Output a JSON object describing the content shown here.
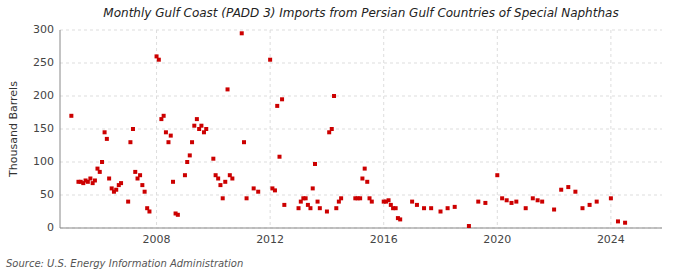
{
  "chart_data": {
    "type": "scatter",
    "title": "Monthly Gulf Coast (PADD 3) Imports from Persian Gulf Countries of Special Naphthas",
    "y_label": "Thousand Barrels",
    "annotations": [
      "Source: U.S. Energy Information Administration"
    ],
    "color": "#cc0000",
    "marker": "square",
    "grid": true,
    "xlim": [
      2004.6,
      2025.8
    ],
    "xticks": [
      2008,
      2012,
      2016,
      2020,
      2024
    ],
    "ylim": [
      0,
      300
    ],
    "yticks": [
      0,
      50,
      100,
      150,
      200,
      250,
      300
    ],
    "x": [
      2005.0,
      2005.25,
      2005.33,
      2005.42,
      2005.5,
      2005.58,
      2005.67,
      2005.75,
      2005.83,
      2005.92,
      2006.0,
      2006.08,
      2006.17,
      2006.25,
      2006.33,
      2006.42,
      2006.5,
      2006.58,
      2006.67,
      2006.75,
      2007.0,
      2007.08,
      2007.17,
      2007.25,
      2007.33,
      2007.42,
      2007.5,
      2007.58,
      2007.67,
      2007.75,
      2008.0,
      2008.08,
      2008.17,
      2008.25,
      2008.33,
      2008.42,
      2008.5,
      2008.58,
      2008.67,
      2008.75,
      2009.0,
      2009.08,
      2009.17,
      2009.25,
      2009.33,
      2009.42,
      2009.5,
      2009.58,
      2009.67,
      2009.75,
      2010.0,
      2010.08,
      2010.17,
      2010.25,
      2010.33,
      2010.42,
      2010.5,
      2010.58,
      2010.67,
      2011.0,
      2011.08,
      2011.17,
      2011.42,
      2011.58,
      2012.0,
      2012.08,
      2012.17,
      2012.25,
      2012.33,
      2012.42,
      2012.5,
      2013.0,
      2013.08,
      2013.17,
      2013.25,
      2013.33,
      2013.42,
      2013.5,
      2013.58,
      2013.67,
      2013.75,
      2014.0,
      2014.08,
      2014.17,
      2014.25,
      2014.33,
      2014.42,
      2014.5,
      2015.0,
      2015.08,
      2015.17,
      2015.25,
      2015.33,
      2015.42,
      2015.5,
      2015.58,
      2016.0,
      2016.08,
      2016.17,
      2016.25,
      2016.33,
      2016.42,
      2016.5,
      2016.58,
      2017.0,
      2017.17,
      2017.42,
      2017.67,
      2018.0,
      2018.25,
      2018.5,
      2019.0,
      2019.33,
      2019.58,
      2020.0,
      2020.17,
      2020.33,
      2020.5,
      2020.67,
      2021.0,
      2021.25,
      2021.42,
      2021.58,
      2022.0,
      2022.25,
      2022.5,
      2022.75,
      2023.0,
      2023.25,
      2023.5,
      2024.0,
      2024.25,
      2024.5
    ],
    "values": [
      170,
      70,
      70,
      68,
      72,
      70,
      75,
      68,
      72,
      90,
      85,
      100,
      145,
      135,
      75,
      60,
      55,
      58,
      65,
      68,
      40,
      130,
      150,
      85,
      75,
      80,
      65,
      55,
      30,
      25,
      260,
      255,
      165,
      170,
      145,
      130,
      140,
      70,
      22,
      20,
      80,
      100,
      110,
      130,
      155,
      165,
      150,
      155,
      145,
      150,
      105,
      80,
      75,
      65,
      45,
      70,
      210,
      80,
      75,
      295,
      130,
      45,
      60,
      55,
      255,
      60,
      57,
      185,
      108,
      195,
      35,
      30,
      40,
      45,
      45,
      35,
      30,
      60,
      97,
      40,
      30,
      25,
      145,
      150,
      200,
      30,
      40,
      45,
      45,
      45,
      45,
      75,
      90,
      70,
      45,
      40,
      40,
      40,
      42,
      35,
      30,
      30,
      15,
      13,
      40,
      35,
      30,
      30,
      25,
      30,
      32,
      3,
      40,
      38,
      80,
      45,
      42,
      38,
      40,
      30,
      45,
      42,
      40,
      28,
      58,
      62,
      55,
      30,
      35,
      40,
      45,
      10,
      8
    ]
  }
}
